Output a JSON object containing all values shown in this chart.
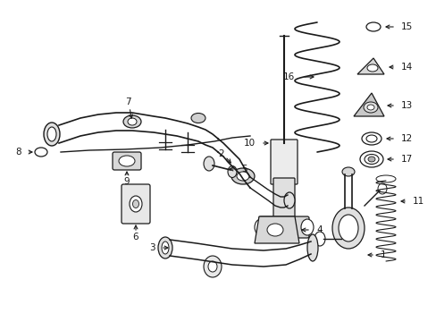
{
  "bg_color": "#ffffff",
  "line_color": "#1a1a1a",
  "fig_width": 4.89,
  "fig_height": 3.6,
  "dpi": 100,
  "xlim": [
    0,
    489
  ],
  "ylim": [
    0,
    360
  ]
}
